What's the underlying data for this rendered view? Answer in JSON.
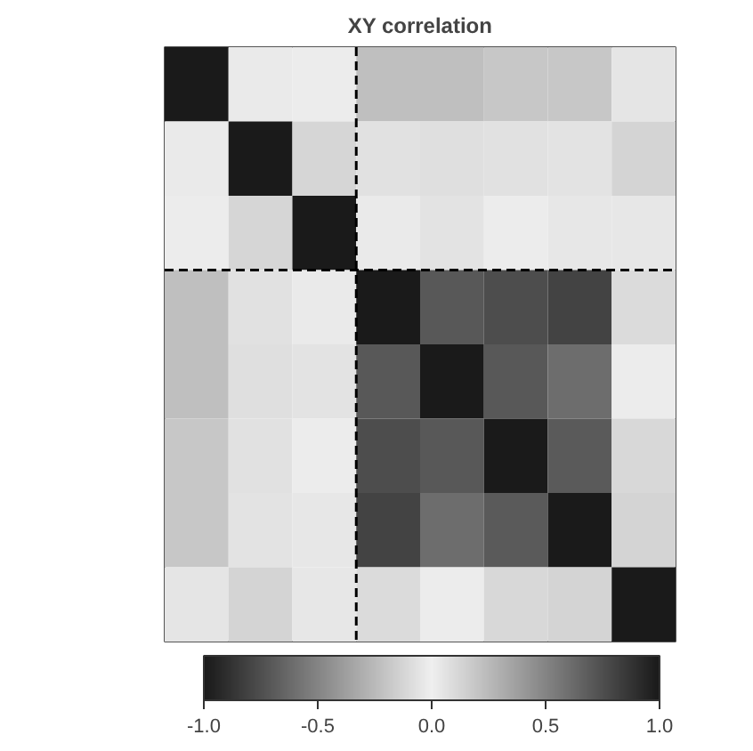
{
  "chart_data": {
    "type": "heatmap",
    "title": "XY correlation",
    "categories": [
      null,
      null,
      null,
      null,
      null,
      null,
      null,
      null
    ],
    "y_categories": [
      null,
      null,
      null,
      null,
      null,
      null,
      null,
      null
    ],
    "cells": [
      [
        1,
        0.03,
        0.02,
        0.23,
        0.23,
        0.19,
        0.19,
        0.05
      ],
      [
        0.03,
        1,
        0.12,
        0.07,
        0.08,
        0.07,
        0.06,
        0.13
      ],
      [
        0.02,
        0.12,
        1,
        0.03,
        0.06,
        0.02,
        0.04,
        0.04
      ],
      [
        0.23,
        0.07,
        0.03,
        1,
        0.71,
        0.76,
        0.81,
        0.1
      ],
      [
        0.23,
        0.08,
        0.06,
        0.71,
        1,
        0.71,
        0.61,
        0.02
      ],
      [
        0.19,
        0.07,
        0.02,
        0.76,
        0.71,
        1,
        0.7,
        0.11
      ],
      [
        0.19,
        0.06,
        0.04,
        0.81,
        0.61,
        0.7,
        1,
        0.13
      ],
      [
        0.05,
        0.13,
        0.04,
        0.1,
        0.02,
        0.11,
        0.13,
        1
      ]
    ],
    "clim": [
      -1,
      1
    ],
    "cticks": [
      {
        "value": -1,
        "label": "-1.0"
      },
      {
        "value": -0.5,
        "label": "-0.5"
      },
      {
        "value": 0,
        "label": "0.0"
      },
      {
        "value": 0.5,
        "label": "0.5"
      },
      {
        "value": 1,
        "label": "1.0"
      }
    ]
  }
}
